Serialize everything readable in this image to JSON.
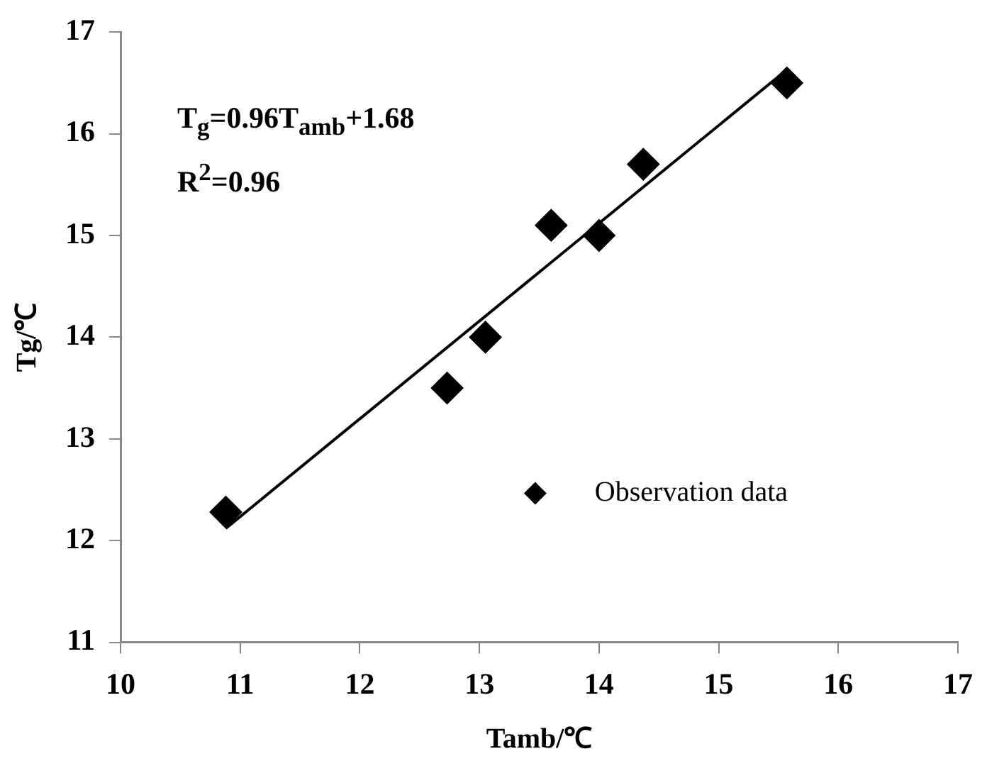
{
  "chart_data": {
    "type": "scatter",
    "xlabel": "Tamb/℃",
    "ylabel": "Tg/℃",
    "x": [
      10.88,
      12.73,
      13.05,
      13.6,
      14.0,
      14.37,
      15.57
    ],
    "series": [
      {
        "name": "Observation data",
        "color": "#000000",
        "marker": "diamond",
        "values": [
          12.28,
          13.5,
          14.0,
          15.1,
          15.0,
          15.7,
          16.5
        ]
      },
      {
        "type": "line",
        "color": "#000000",
        "marker": "none",
        "x": [
          10.88,
          15.57
        ],
        "values": [
          12.12,
          16.63
        ]
      }
    ],
    "xlim": [
      10,
      17
    ],
    "xticks": [
      10,
      11,
      12,
      13,
      14,
      15,
      16,
      17
    ],
    "ylim": [
      11,
      17
    ],
    "yticks": [
      11,
      12,
      13,
      14,
      15,
      16,
      17
    ],
    "annotations": [
      "T$_{g}$=0.96T$_{amb}$+1.68",
      "R$^{2}$=0.96"
    ],
    "legend": "bottom right",
    "grid": false
  }
}
